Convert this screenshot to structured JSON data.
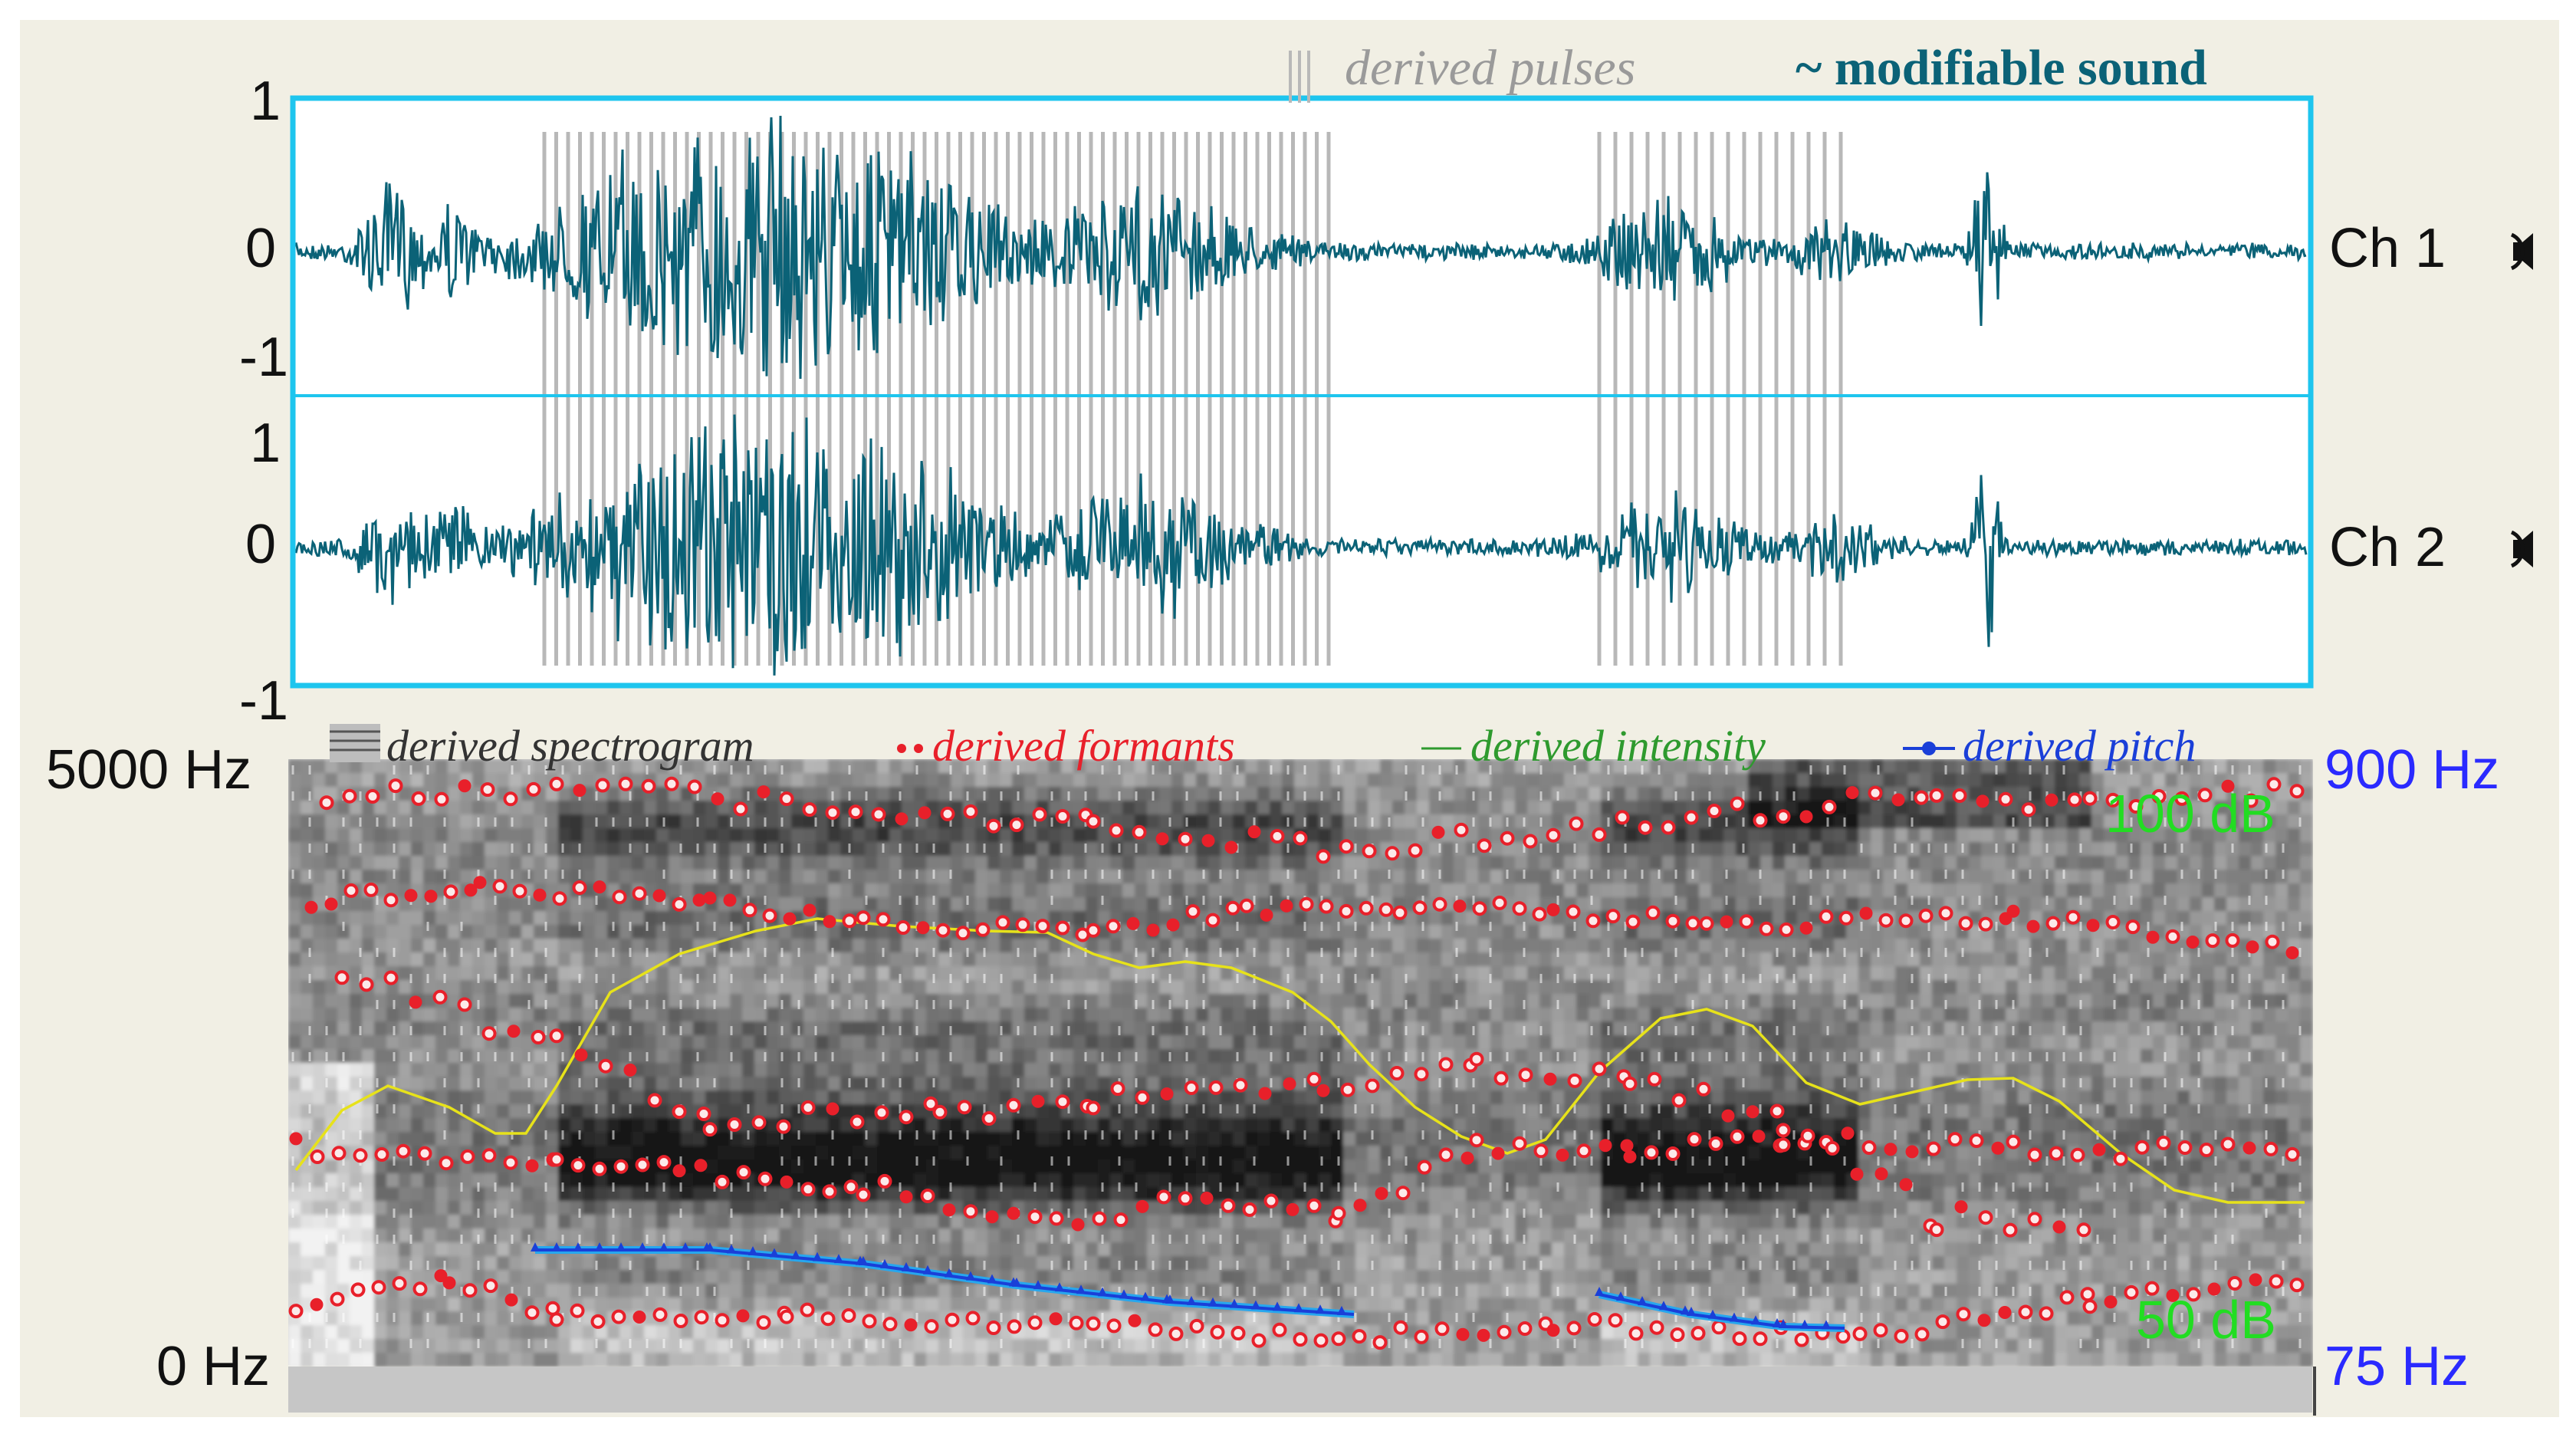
{
  "waveform": {
    "legend_pulses": "derived pulses",
    "legend_sound": "modifiable sound",
    "ch1": {
      "label": "Ch 1",
      "ticks": [
        "1",
        "0",
        "-1"
      ]
    },
    "ch2": {
      "label": "Ch 2",
      "ticks": [
        "1",
        "0",
        "-1"
      ]
    },
    "speaker_icon": "speaker-icon",
    "colors": {
      "frame": "#1ec5ee",
      "wave": "#0b6277",
      "pulse": "#b8b8b8"
    }
  },
  "spectrogram": {
    "legend_spectrogram": "derived spectrogram",
    "legend_formants": "derived formants",
    "legend_intensity": "derived intensity",
    "legend_pitch": "derived pitch",
    "freq_top": "5000 Hz",
    "freq_bottom": "0 Hz",
    "pitch_top": "900 Hz",
    "pitch_bottom": "75 Hz",
    "db_top": "100 dB",
    "db_bottom": "50 dB",
    "colors": {
      "formant": "#e8202a",
      "intensity": "#e7e21a",
      "pitch": "#1a3fd8",
      "db": "#22dd22",
      "pitch_axis": "#2a2aff"
    }
  }
}
